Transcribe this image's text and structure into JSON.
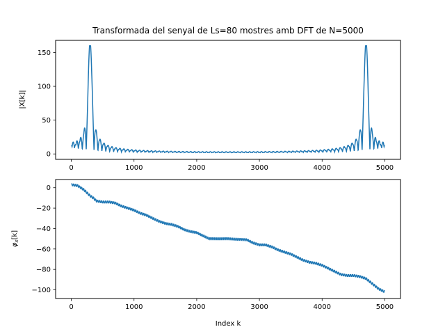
{
  "chart_data": [
    {
      "type": "line",
      "title": "Transformada del senyal de Ls=80 mostres amb DFT de N=5000",
      "xlabel": "",
      "ylabel": "|X[k]|",
      "xlim": [
        0,
        5000
      ],
      "ylim": [
        0,
        160
      ],
      "xticks": [
        0,
        1000,
        2000,
        3000,
        4000,
        5000
      ],
      "yticks": [
        0,
        50,
        100,
        150
      ],
      "grid": false,
      "series": [
        {
          "color": "#1f77b4",
          "description_points": {
            "x": [
              0,
              60,
              120,
              180,
              230,
              250,
              270,
              300,
              330,
              360,
              390,
              420,
              480,
              600,
              800,
              1000,
              1500,
              2000,
              2500,
              3000,
              3500,
              4000,
              4200,
              4400,
              4520,
              4580,
              4640,
              4670,
              4700,
              4730,
              4750,
              4800,
              4860,
              4920,
              5000
            ],
            "y": [
              2,
              8,
              10,
              15,
              28,
              0,
              90,
              160,
              90,
              0,
              38,
              25,
              18,
              11,
              8,
              6,
              5,
              5,
              5,
              5,
              5,
              6,
              8,
              11,
              18,
              25,
              38,
              90,
              160,
              90,
              28,
              15,
              10,
              8,
              2
            ]
          }
        }
      ]
    },
    {
      "type": "line",
      "title": "",
      "xlabel": "Index k",
      "ylabel": "φ_x[k]",
      "xlim": [
        0,
        5000
      ],
      "ylim": [
        -105,
        4
      ],
      "xticks": [
        0,
        1000,
        2000,
        3000,
        4000,
        5000
      ],
      "yticks": [
        0,
        -20,
        -40,
        -60,
        -80,
        -100
      ],
      "grid": false,
      "series": [
        {
          "color": "#1f77b4",
          "points": {
            "x": [
              0,
              100,
              150,
              200,
              250,
              300,
              350,
              400,
              500,
              600,
              700,
              800,
              900,
              1000,
              1100,
              1200,
              1300,
              1400,
              1500,
              1600,
              1700,
              1800,
              1900,
              2000,
              2100,
              2200,
              2500,
              2800,
              2900,
              3000,
              3100,
              3200,
              3300,
              3400,
              3500,
              3600,
              3700,
              3800,
              3900,
              4000,
              4100,
              4200,
              4300,
              4400,
              4500,
              4600,
              4700,
              4800,
              4900,
              5000
            ],
            "y": [
              3,
              2,
              0,
              -2,
              -5,
              -8,
              -10,
              -13,
              -14,
              -14,
              -15,
              -18,
              -20,
              -22,
              -25,
              -27,
              -30,
              -33,
              -35,
              -36,
              -38,
              -41,
              -43,
              -44,
              -47,
              -50,
              -50,
              -51,
              -54,
              -56,
              -56,
              -58,
              -61,
              -63,
              -65,
              -68,
              -71,
              -73,
              -74,
              -76,
              -79,
              -82,
              -85,
              -86,
              -86,
              -87,
              -89,
              -94,
              -99,
              -102
            ]
          }
        }
      ]
    }
  ]
}
